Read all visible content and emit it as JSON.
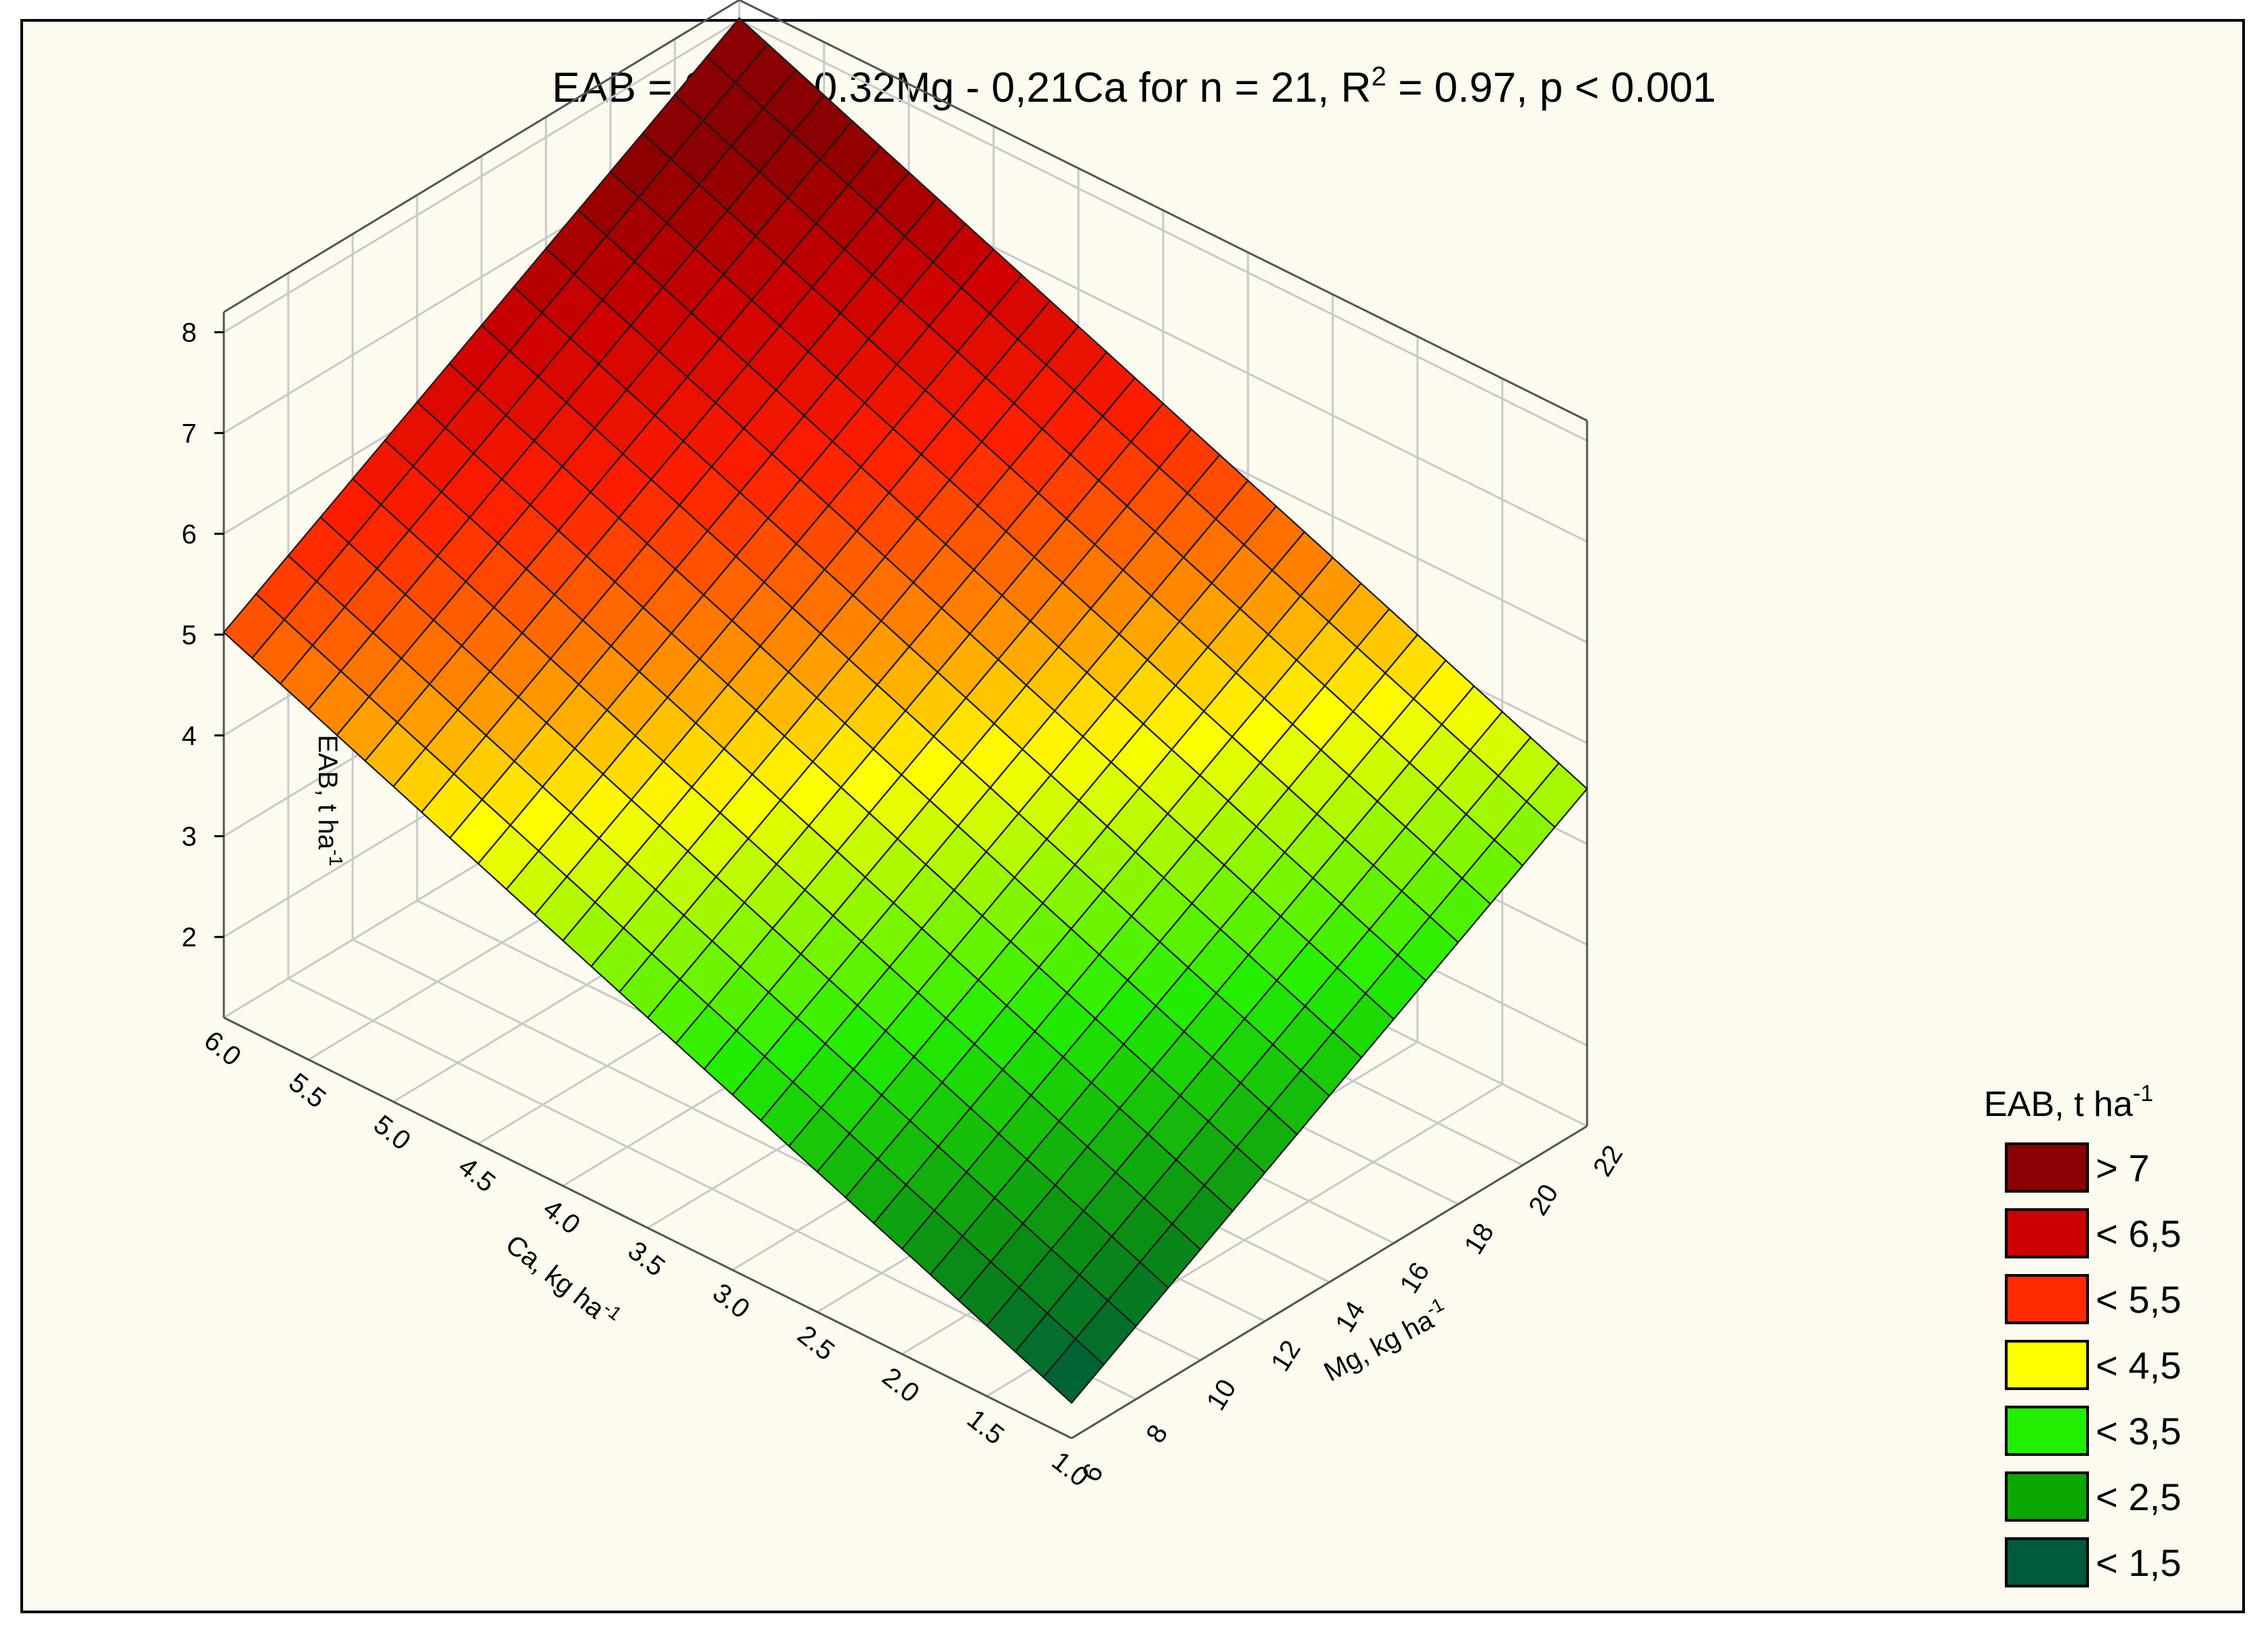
{
  "chart_data": {
    "type": "surface3d",
    "title": "EAB = 0.65 + 0.32Mg - 0,21Ca for n = 21, R",
    "title_sup": "2",
    "title_tail": " = 0.97, p < 0.001",
    "xlabel": "Mg, kg ha",
    "xlabel_sup": "-1",
    "ylabel": "Ca, kg ha",
    "ylabel_sup": "-1",
    "zlabel": "EAB, t ha",
    "zlabel_sup": "-1",
    "x_ticks": [
      "6",
      "8",
      "10",
      "12",
      "14",
      "16",
      "18",
      "20",
      "22"
    ],
    "y_ticks": [
      "1.0",
      "1.5",
      "2.0",
      "2.5",
      "3.0",
      "3.5",
      "4.0",
      "4.5",
      "5.0",
      "5.5",
      "6.0"
    ],
    "z_ticks": [
      "2",
      "3",
      "4",
      "5",
      "6",
      "7",
      "8"
    ],
    "x_range": [
      6,
      22
    ],
    "y_range": [
      1.0,
      6.0
    ],
    "z_range": [
      1.2,
      8.2
    ],
    "surface": {
      "intercept": 0.65,
      "mg_coef": 0.32,
      "ca_coef": -0.21,
      "n": 21,
      "r2": 0.97,
      "p": "< 0.001"
    },
    "legend": {
      "title": "EAB, t ha",
      "title_sup": "-1",
      "placement": "bottom-right",
      "entries": [
        {
          "label": "> 7",
          "color": "#8b0000"
        },
        {
          "label": "< 6,5",
          "color": "#cc0000"
        },
        {
          "label": "< 5,5",
          "color": "#ff2a00"
        },
        {
          "label": "< 4,5",
          "color": "#ffff00"
        },
        {
          "label": "< 3,5",
          "color": "#22ee00"
        },
        {
          "label": "< 2,5",
          "color": "#0aa800"
        },
        {
          "label": "< 1,5",
          "color": "#005a3c"
        }
      ]
    },
    "background_color": "#fdfaf0",
    "grid": true
  }
}
